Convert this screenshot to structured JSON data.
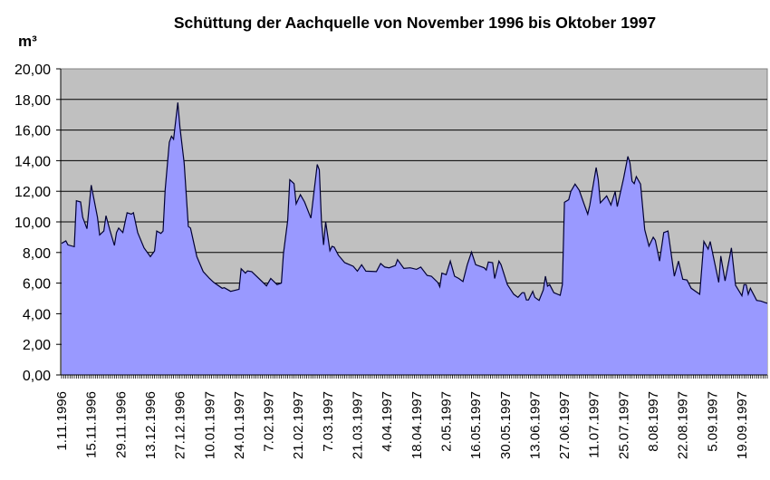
{
  "chart_data": {
    "type": "area",
    "title": "Schüttung der Aachquelle von November 1996 bis Oktober 1997",
    "ylabel": "m³",
    "xlabel": "",
    "ylim": [
      0,
      20
    ],
    "yticks": [
      "0,00",
      "2,00",
      "4,00",
      "6,00",
      "8,00",
      "10,00",
      "12,00",
      "14,00",
      "16,00",
      "18,00",
      "20,00"
    ],
    "xlim": [
      "1.11.1996",
      "1.10.1997"
    ],
    "xticks": [
      "1.11.1996",
      "15.11.1996",
      "29.11.1996",
      "13.12.1996",
      "27.12.1996",
      "10.01.1997",
      "24.01.1997",
      "7.02.1997",
      "21.02.1997",
      "7.03.1997",
      "21.03.1997",
      "4.04.1997",
      "18.04.1997",
      "2.05.1997",
      "16.05.1997",
      "30.05.1997",
      "13.06.1997",
      "27.06.1997",
      "11.07.1997",
      "25.07.1997",
      "8.08.1997",
      "22.08.1997",
      "5.09.1997",
      "19.09.1997"
    ],
    "grid": true,
    "legend": "none",
    "colors": {
      "plot_background": "#c0c0c0",
      "fill": "#9999ff",
      "line": "#000033",
      "grid": "#000000"
    },
    "points": [
      [
        "1.11.1996",
        8.6
      ],
      [
        "3.11.1996",
        8.76
      ],
      [
        "4.11.1996",
        8.5
      ],
      [
        "7.11.1996",
        8.38
      ],
      [
        "8.11.1996",
        11.38
      ],
      [
        "10.11.1996",
        11.3
      ],
      [
        "11.11.1996",
        10.3
      ],
      [
        "13.11.1996",
        9.55
      ],
      [
        "15.11.1996",
        12.4
      ],
      [
        "18.11.1996",
        10.3
      ],
      [
        "19.11.1996",
        9.15
      ],
      [
        "21.11.1996",
        9.4
      ],
      [
        "22.11.1996",
        10.4
      ],
      [
        "24.11.1996",
        9.4
      ],
      [
        "26.11.1996",
        8.46
      ],
      [
        "27.11.1996",
        9.3
      ],
      [
        "28.11.1996",
        9.6
      ],
      [
        "30.11.1996",
        9.3
      ],
      [
        "2.12.1996",
        10.6
      ],
      [
        "4.12.1996",
        10.5
      ],
      [
        "5.12.1996",
        10.6
      ],
      [
        "7.12.1996",
        9.3
      ],
      [
        "10.12.1996",
        8.3
      ],
      [
        "13.12.1996",
        7.73
      ],
      [
        "15.12.1996",
        8.1
      ],
      [
        "16.12.1996",
        9.4
      ],
      [
        "18.12.1996",
        9.25
      ],
      [
        "19.12.1996",
        9.4
      ],
      [
        "20.12.1996",
        12.07
      ],
      [
        "22.12.1996",
        15.2
      ],
      [
        "23.12.1996",
        15.6
      ],
      [
        "24.12.1996",
        15.4
      ],
      [
        "26.12.1996",
        17.8
      ],
      [
        "27.12.1996",
        16.2
      ],
      [
        "29.12.1996",
        13.85
      ],
      [
        "31.12.1996",
        9.7
      ],
      [
        "1.01.1997",
        9.6
      ],
      [
        "4.01.1997",
        7.73
      ],
      [
        "7.01.1997",
        6.75
      ],
      [
        "10.01.1997",
        6.3
      ],
      [
        "12.01.1997",
        6.05
      ],
      [
        "16.01.1997",
        5.66
      ],
      [
        "17.01.1997",
        5.7
      ],
      [
        "20.01.1997",
        5.46
      ],
      [
        "24.01.1997",
        5.6
      ],
      [
        "25.01.1997",
        6.94
      ],
      [
        "27.01.1997",
        6.65
      ],
      [
        "28.01.1997",
        6.8
      ],
      [
        "30.01.1997",
        6.75
      ],
      [
        "6.02.1997",
        5.82
      ],
      [
        "8.02.1997",
        6.3
      ],
      [
        "11.02.1997",
        5.9
      ],
      [
        "13.02.1997",
        6.0
      ],
      [
        "14.02.1997",
        7.93
      ],
      [
        "16.02.1997",
        10.1
      ],
      [
        "17.02.1997",
        12.76
      ],
      [
        "19.02.1997",
        12.5
      ],
      [
        "20.02.1997",
        11.18
      ],
      [
        "22.02.1997",
        11.78
      ],
      [
        "24.02.1997",
        11.3
      ],
      [
        "27.02.1997",
        10.25
      ],
      [
        "2.03.1997",
        13.75
      ],
      [
        "3.03.1997",
        13.4
      ],
      [
        "4.03.1997",
        10.0
      ],
      [
        "5.03.1997",
        8.5
      ],
      [
        "6.03.1997",
        10.0
      ],
      [
        "8.03.1997",
        8.12
      ],
      [
        "9.03.1997",
        8.4
      ],
      [
        "10.03.1997",
        8.35
      ],
      [
        "12.03.1997",
        7.83
      ],
      [
        "15.03.1997",
        7.34
      ],
      [
        "19.03.1997",
        7.1
      ],
      [
        "21.03.1997",
        6.78
      ],
      [
        "23.03.1997",
        7.2
      ],
      [
        "25.03.1997",
        6.78
      ],
      [
        "30.03.1997",
        6.75
      ],
      [
        "1.04.1997",
        7.28
      ],
      [
        "3.04.1997",
        7.05
      ],
      [
        "5.04.1997",
        7.0
      ],
      [
        "8.04.1997",
        7.15
      ],
      [
        "9.04.1997",
        7.53
      ],
      [
        "12.04.1997",
        6.96
      ],
      [
        "15.04.1997",
        7.0
      ],
      [
        "18.04.1997",
        6.9
      ],
      [
        "20.04.1997",
        7.05
      ],
      [
        "23.04.1997",
        6.5
      ],
      [
        "25.04.1997",
        6.45
      ],
      [
        "28.04.1997",
        6.05
      ],
      [
        "29.04.1997",
        5.76
      ],
      [
        "30.04.1997",
        6.65
      ],
      [
        "2.05.1997",
        6.55
      ],
      [
        "4.05.1997",
        7.44
      ],
      [
        "6.05.1997",
        6.45
      ],
      [
        "8.05.1997",
        6.3
      ],
      [
        "10.05.1997",
        6.1
      ],
      [
        "12.05.1997",
        7.2
      ],
      [
        "14.05.1997",
        8.03
      ],
      [
        "16.05.1997",
        7.2
      ],
      [
        "20.05.1997",
        7.0
      ],
      [
        "21.05.1997",
        6.85
      ],
      [
        "22.05.1997",
        7.38
      ],
      [
        "24.05.1997",
        7.34
      ],
      [
        "25.05.1997",
        6.3
      ],
      [
        "27.05.1997",
        7.44
      ],
      [
        "28.05.1997",
        7.2
      ],
      [
        "31.05.1997",
        5.9
      ],
      [
        "3.06.1997",
        5.27
      ],
      [
        "5.06.1997",
        5.07
      ],
      [
        "7.06.1997",
        5.37
      ],
      [
        "8.06.1997",
        5.37
      ],
      [
        "9.06.1997",
        4.9
      ],
      [
        "10.06.1997",
        4.9
      ],
      [
        "12.06.1997",
        5.46
      ],
      [
        "13.06.1997",
        5.07
      ],
      [
        "15.06.1997",
        4.87
      ],
      [
        "17.06.1997",
        5.56
      ],
      [
        "18.06.1997",
        6.45
      ],
      [
        "19.06.1997",
        5.8
      ],
      [
        "20.06.1997",
        5.9
      ],
      [
        "22.06.1997",
        5.37
      ],
      [
        "25.06.1997",
        5.2
      ],
      [
        "26.06.1997",
        5.9
      ],
      [
        "27.06.1997",
        11.28
      ],
      [
        "29.06.1997",
        11.45
      ],
      [
        "30.06.1997",
        11.98
      ],
      [
        "2.07.1997",
        12.47
      ],
      [
        "4.07.1997",
        12.07
      ],
      [
        "6.07.1997",
        11.28
      ],
      [
        "8.07.1997",
        10.5
      ],
      [
        "9.07.1997",
        11.1
      ],
      [
        "12.07.1997",
        13.55
      ],
      [
        "13.07.1997",
        12.76
      ],
      [
        "14.07.1997",
        11.24
      ],
      [
        "17.07.1997",
        11.7
      ],
      [
        "19.07.1997",
        11.1
      ],
      [
        "21.07.1997",
        11.98
      ],
      [
        "22.07.1997",
        11.0
      ],
      [
        "25.07.1997",
        12.86
      ],
      [
        "27.07.1997",
        14.28
      ],
      [
        "28.07.1997",
        13.85
      ],
      [
        "29.07.1997",
        12.66
      ],
      [
        "30.07.1997",
        12.5
      ],
      [
        "31.07.1997",
        12.96
      ],
      [
        "2.08.1997",
        12.47
      ],
      [
        "4.08.1997",
        9.5
      ],
      [
        "6.08.1997",
        8.42
      ],
      [
        "8.08.1997",
        9.0
      ],
      [
        "9.08.1997",
        8.8
      ],
      [
        "11.08.1997",
        7.44
      ],
      [
        "13.08.1997",
        9.3
      ],
      [
        "15.08.1997",
        9.4
      ],
      [
        "18.08.1997",
        6.45
      ],
      [
        "20.08.1997",
        7.44
      ],
      [
        "22.08.1997",
        6.25
      ],
      [
        "24.08.1997",
        6.2
      ],
      [
        "26.08.1997",
        5.66
      ],
      [
        "30.08.1997",
        5.27
      ],
      [
        "1.09.1997",
        8.72
      ],
      [
        "3.09.1997",
        8.22
      ],
      [
        "4.09.1997",
        8.72
      ],
      [
        "8.09.1997",
        6.05
      ],
      [
        "9.09.1997",
        7.77
      ],
      [
        "11.09.1997",
        6.15
      ],
      [
        "14.09.1997",
        8.3
      ],
      [
        "16.09.1997",
        5.86
      ],
      [
        "19.09.1997",
        5.17
      ],
      [
        "20.09.1997",
        5.9
      ],
      [
        "21.09.1997",
        5.9
      ],
      [
        "22.09.1997",
        5.27
      ],
      [
        "23.09.1997",
        5.66
      ],
      [
        "26.09.1997",
        4.87
      ],
      [
        "28.09.1997",
        4.83
      ],
      [
        "1.10.1997",
        4.68
      ]
    ]
  }
}
